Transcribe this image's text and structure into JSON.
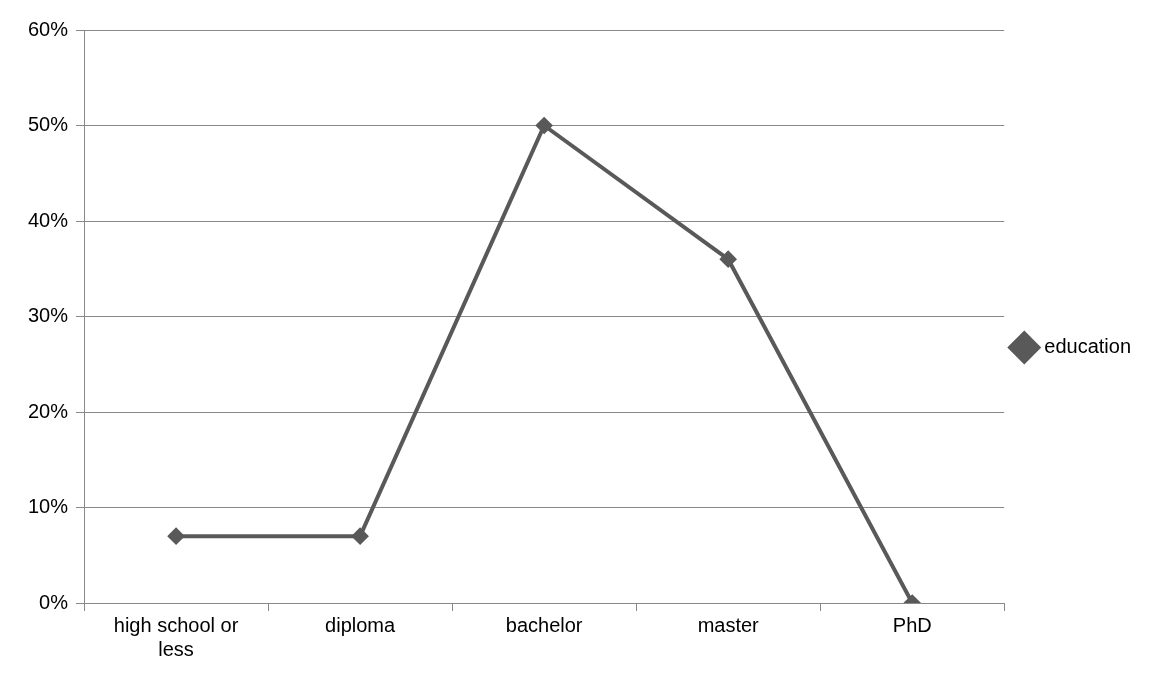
{
  "chart_data": {
    "type": "line",
    "categories": [
      "high school or less",
      "diploma",
      "bachelor",
      "master",
      "PhD"
    ],
    "series": [
      {
        "name": "education",
        "color": "#595959",
        "values": [
          7,
          7,
          50,
          36,
          0
        ]
      }
    ],
    "ylim": [
      0,
      60
    ],
    "yticks": [
      {
        "value": 0,
        "label": "0%"
      },
      {
        "value": 10,
        "label": "10%"
      },
      {
        "value": 20,
        "label": "20%"
      },
      {
        "value": 30,
        "label": "30%"
      },
      {
        "value": 40,
        "label": "40%"
      },
      {
        "value": 50,
        "label": "50%"
      },
      {
        "value": 60,
        "label": "60%"
      }
    ],
    "grid": "y",
    "legend": "right",
    "marker": "diamond",
    "line_style": "solid"
  }
}
